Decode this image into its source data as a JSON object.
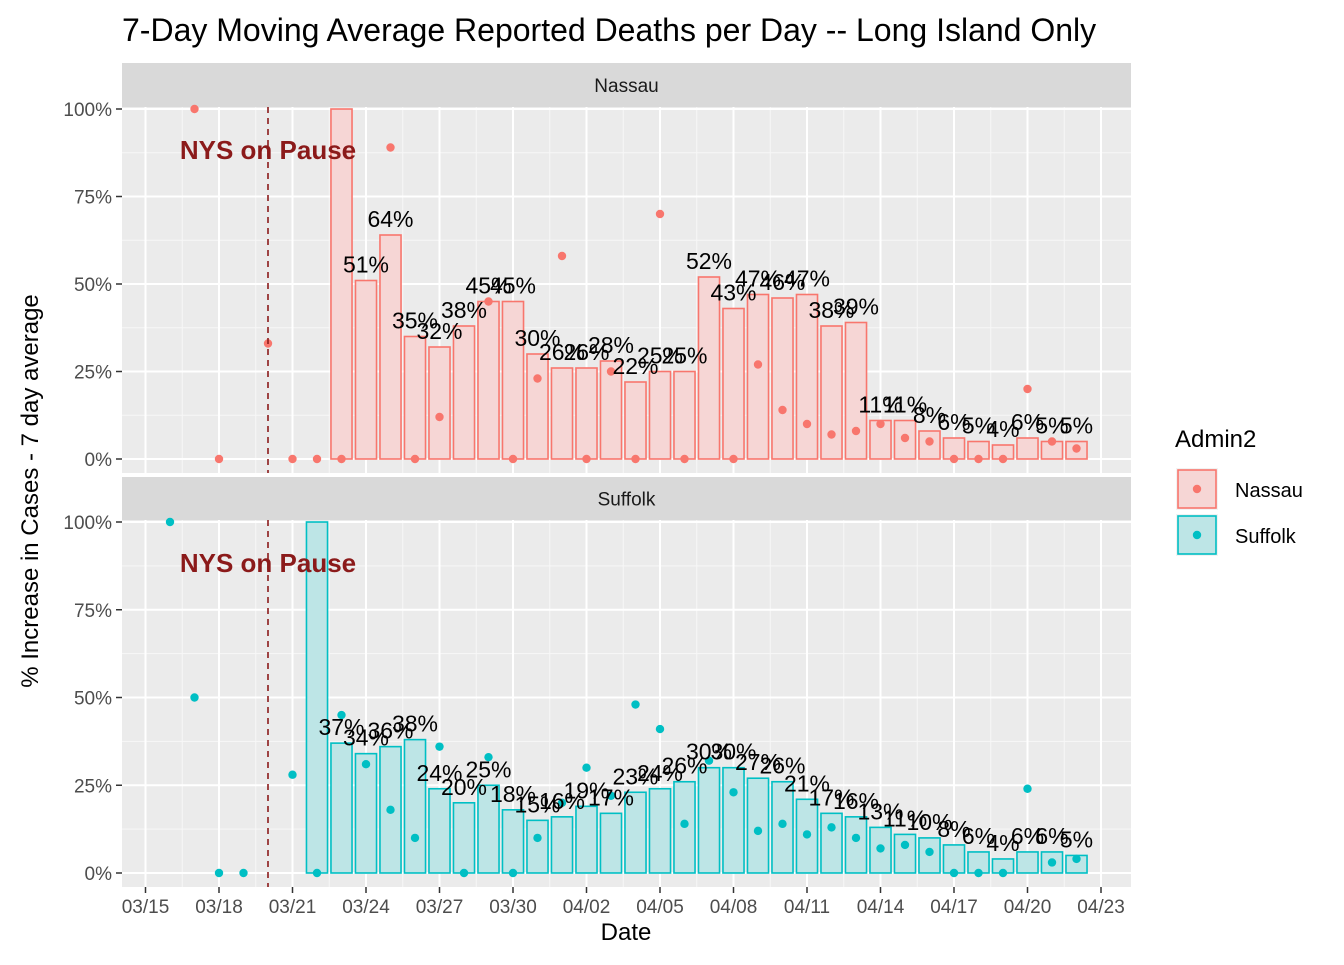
{
  "chart_data": {
    "type": "bar",
    "title": "7-Day Moving Average Reported Deaths per Day -- Long Island Only",
    "xlabel": "Date",
    "ylabel": "% Increase in Cases - 7 day average",
    "y_tick_labels": [
      "0%",
      "25%",
      "50%",
      "75%",
      "100%"
    ],
    "ylim": [
      0,
      100
    ],
    "x_tick_labels": [
      "03/15",
      "03/18",
      "03/21",
      "03/24",
      "03/27",
      "03/30",
      "04/02",
      "04/05",
      "04/08",
      "04/11",
      "04/14",
      "04/17",
      "04/20",
      "04/23"
    ],
    "x_range": [
      "2020-03-15",
      "2020-04-23"
    ],
    "grid": true,
    "legend": {
      "title": "Admin2",
      "position": "right",
      "entries": [
        {
          "name": "Nassau",
          "color": "#F8766D"
        },
        {
          "name": "Suffolk",
          "color": "#00BFC4"
        }
      ]
    },
    "annotation": {
      "text": "NYS on Pause",
      "date": "2020-03-20",
      "color": "#8B1A1A"
    },
    "panels": [
      {
        "name": "Nassau",
        "color": "#F8766D",
        "fill": "#F6D6D5",
        "bars": [
          {
            "date": "2020-03-23",
            "value": 100,
            "label": ""
          },
          {
            "date": "2020-03-24",
            "value": 51,
            "label": "51%"
          },
          {
            "date": "2020-03-25",
            "value": 64,
            "label": "64%"
          },
          {
            "date": "2020-03-26",
            "value": 35,
            "label": "35%"
          },
          {
            "date": "2020-03-27",
            "value": 32,
            "label": "32%"
          },
          {
            "date": "2020-03-28",
            "value": 38,
            "label": "38%"
          },
          {
            "date": "2020-03-29",
            "value": 45,
            "label": "45%"
          },
          {
            "date": "2020-03-30",
            "value": 45,
            "label": "45%"
          },
          {
            "date": "2020-03-31",
            "value": 30,
            "label": "30%"
          },
          {
            "date": "2020-04-01",
            "value": 26,
            "label": "26%"
          },
          {
            "date": "2020-04-02",
            "value": 26,
            "label": "26%"
          },
          {
            "date": "2020-04-03",
            "value": 28,
            "label": "28%"
          },
          {
            "date": "2020-04-04",
            "value": 22,
            "label": "22%"
          },
          {
            "date": "2020-04-05",
            "value": 25,
            "label": "25%"
          },
          {
            "date": "2020-04-06",
            "value": 25,
            "label": "25%"
          },
          {
            "date": "2020-04-07",
            "value": 52,
            "label": "52%"
          },
          {
            "date": "2020-04-08",
            "value": 43,
            "label": "43%"
          },
          {
            "date": "2020-04-09",
            "value": 47,
            "label": "47%"
          },
          {
            "date": "2020-04-10",
            "value": 46,
            "label": "46%"
          },
          {
            "date": "2020-04-11",
            "value": 47,
            "label": "47%"
          },
          {
            "date": "2020-04-12",
            "value": 38,
            "label": "38%"
          },
          {
            "date": "2020-04-13",
            "value": 39,
            "label": "39%"
          },
          {
            "date": "2020-04-14",
            "value": 11,
            "label": "11%"
          },
          {
            "date": "2020-04-15",
            "value": 11,
            "label": "11%"
          },
          {
            "date": "2020-04-16",
            "value": 8,
            "label": "8%"
          },
          {
            "date": "2020-04-17",
            "value": 6,
            "label": "6%"
          },
          {
            "date": "2020-04-18",
            "value": 5,
            "label": "5%"
          },
          {
            "date": "2020-04-19",
            "value": 4,
            "label": "4%"
          },
          {
            "date": "2020-04-20",
            "value": 6,
            "label": "6%"
          },
          {
            "date": "2020-04-21",
            "value": 5,
            "label": "5%"
          },
          {
            "date": "2020-04-22",
            "value": 5,
            "label": "5%"
          }
        ],
        "points": [
          {
            "date": "2020-03-17",
            "value": 100
          },
          {
            "date": "2020-03-18",
            "value": 0
          },
          {
            "date": "2020-03-20",
            "value": 33
          },
          {
            "date": "2020-03-21",
            "value": 0
          },
          {
            "date": "2020-03-22",
            "value": 0
          },
          {
            "date": "2020-03-23",
            "value": 0
          },
          {
            "date": "2020-03-25",
            "value": 89
          },
          {
            "date": "2020-03-26",
            "value": 0
          },
          {
            "date": "2020-03-27",
            "value": 12
          },
          {
            "date": "2020-03-29",
            "value": 45
          },
          {
            "date": "2020-03-30",
            "value": 0
          },
          {
            "date": "2020-03-31",
            "value": 23
          },
          {
            "date": "2020-04-01",
            "value": 58
          },
          {
            "date": "2020-04-02",
            "value": 0
          },
          {
            "date": "2020-04-03",
            "value": 25
          },
          {
            "date": "2020-04-04",
            "value": 0
          },
          {
            "date": "2020-04-05",
            "value": 70
          },
          {
            "date": "2020-04-06",
            "value": 0
          },
          {
            "date": "2020-04-08",
            "value": 0
          },
          {
            "date": "2020-04-09",
            "value": 27
          },
          {
            "date": "2020-04-10",
            "value": 14
          },
          {
            "date": "2020-04-11",
            "value": 10
          },
          {
            "date": "2020-04-12",
            "value": 7
          },
          {
            "date": "2020-04-13",
            "value": 8
          },
          {
            "date": "2020-04-14",
            "value": 10
          },
          {
            "date": "2020-04-15",
            "value": 6
          },
          {
            "date": "2020-04-16",
            "value": 5
          },
          {
            "date": "2020-04-17",
            "value": 0
          },
          {
            "date": "2020-04-18",
            "value": 0
          },
          {
            "date": "2020-04-19",
            "value": 0
          },
          {
            "date": "2020-04-20",
            "value": 20
          },
          {
            "date": "2020-04-21",
            "value": 5
          },
          {
            "date": "2020-04-22",
            "value": 3
          }
        ]
      },
      {
        "name": "Suffolk",
        "color": "#00BFC4",
        "fill": "#BDE5E6",
        "bars": [
          {
            "date": "2020-03-22",
            "value": 100,
            "label": ""
          },
          {
            "date": "2020-03-23",
            "value": 37,
            "label": "37%"
          },
          {
            "date": "2020-03-24",
            "value": 34,
            "label": "34%"
          },
          {
            "date": "2020-03-25",
            "value": 36,
            "label": "36%"
          },
          {
            "date": "2020-03-26",
            "value": 38,
            "label": "38%"
          },
          {
            "date": "2020-03-27",
            "value": 24,
            "label": "24%"
          },
          {
            "date": "2020-03-28",
            "value": 20,
            "label": "20%"
          },
          {
            "date": "2020-03-29",
            "value": 25,
            "label": "25%"
          },
          {
            "date": "2020-03-30",
            "value": 18,
            "label": "18%"
          },
          {
            "date": "2020-03-31",
            "value": 15,
            "label": "15%"
          },
          {
            "date": "2020-04-01",
            "value": 16,
            "label": "16%"
          },
          {
            "date": "2020-04-02",
            "value": 19,
            "label": "19%"
          },
          {
            "date": "2020-04-03",
            "value": 17,
            "label": "17%"
          },
          {
            "date": "2020-04-04",
            "value": 23,
            "label": "23%"
          },
          {
            "date": "2020-04-05",
            "value": 24,
            "label": "24%"
          },
          {
            "date": "2020-04-06",
            "value": 26,
            "label": "26%"
          },
          {
            "date": "2020-04-07",
            "value": 30,
            "label": "30%"
          },
          {
            "date": "2020-04-08",
            "value": 30,
            "label": "30%"
          },
          {
            "date": "2020-04-09",
            "value": 27,
            "label": "27%"
          },
          {
            "date": "2020-04-10",
            "value": 26,
            "label": "26%"
          },
          {
            "date": "2020-04-11",
            "value": 21,
            "label": "21%"
          },
          {
            "date": "2020-04-12",
            "value": 17,
            "label": "17%"
          },
          {
            "date": "2020-04-13",
            "value": 16,
            "label": "16%"
          },
          {
            "date": "2020-04-14",
            "value": 13,
            "label": "13%"
          },
          {
            "date": "2020-04-15",
            "value": 11,
            "label": "11%"
          },
          {
            "date": "2020-04-16",
            "value": 10,
            "label": "10%"
          },
          {
            "date": "2020-04-17",
            "value": 8,
            "label": "8%"
          },
          {
            "date": "2020-04-18",
            "value": 6,
            "label": "6%"
          },
          {
            "date": "2020-04-19",
            "value": 4,
            "label": "4%"
          },
          {
            "date": "2020-04-20",
            "value": 6,
            "label": "6%"
          },
          {
            "date": "2020-04-21",
            "value": 6,
            "label": "6%"
          },
          {
            "date": "2020-04-22",
            "value": 5,
            "label": "5%"
          }
        ],
        "points": [
          {
            "date": "2020-03-16",
            "value": 100
          },
          {
            "date": "2020-03-17",
            "value": 50
          },
          {
            "date": "2020-03-18",
            "value": 0
          },
          {
            "date": "2020-03-19",
            "value": 0
          },
          {
            "date": "2020-03-21",
            "value": 28
          },
          {
            "date": "2020-03-22",
            "value": 0
          },
          {
            "date": "2020-03-23",
            "value": 45
          },
          {
            "date": "2020-03-24",
            "value": 31
          },
          {
            "date": "2020-03-25",
            "value": 18
          },
          {
            "date": "2020-03-26",
            "value": 10
          },
          {
            "date": "2020-03-27",
            "value": 36
          },
          {
            "date": "2020-03-28",
            "value": 0
          },
          {
            "date": "2020-03-29",
            "value": 33
          },
          {
            "date": "2020-03-30",
            "value": 0
          },
          {
            "date": "2020-03-31",
            "value": 10
          },
          {
            "date": "2020-04-01",
            "value": 20
          },
          {
            "date": "2020-04-02",
            "value": 30
          },
          {
            "date": "2020-04-03",
            "value": 22
          },
          {
            "date": "2020-04-04",
            "value": 48
          },
          {
            "date": "2020-04-05",
            "value": 41
          },
          {
            "date": "2020-04-06",
            "value": 14
          },
          {
            "date": "2020-04-07",
            "value": 32
          },
          {
            "date": "2020-04-08",
            "value": 23
          },
          {
            "date": "2020-04-09",
            "value": 12
          },
          {
            "date": "2020-04-10",
            "value": 14
          },
          {
            "date": "2020-04-11",
            "value": 11
          },
          {
            "date": "2020-04-12",
            "value": 13
          },
          {
            "date": "2020-04-13",
            "value": 10
          },
          {
            "date": "2020-04-14",
            "value": 7
          },
          {
            "date": "2020-04-15",
            "value": 8
          },
          {
            "date": "2020-04-16",
            "value": 6
          },
          {
            "date": "2020-04-17",
            "value": 0
          },
          {
            "date": "2020-04-18",
            "value": 0
          },
          {
            "date": "2020-04-19",
            "value": 0
          },
          {
            "date": "2020-04-20",
            "value": 24
          },
          {
            "date": "2020-04-21",
            "value": 3
          },
          {
            "date": "2020-04-22",
            "value": 4
          }
        ]
      }
    ]
  }
}
